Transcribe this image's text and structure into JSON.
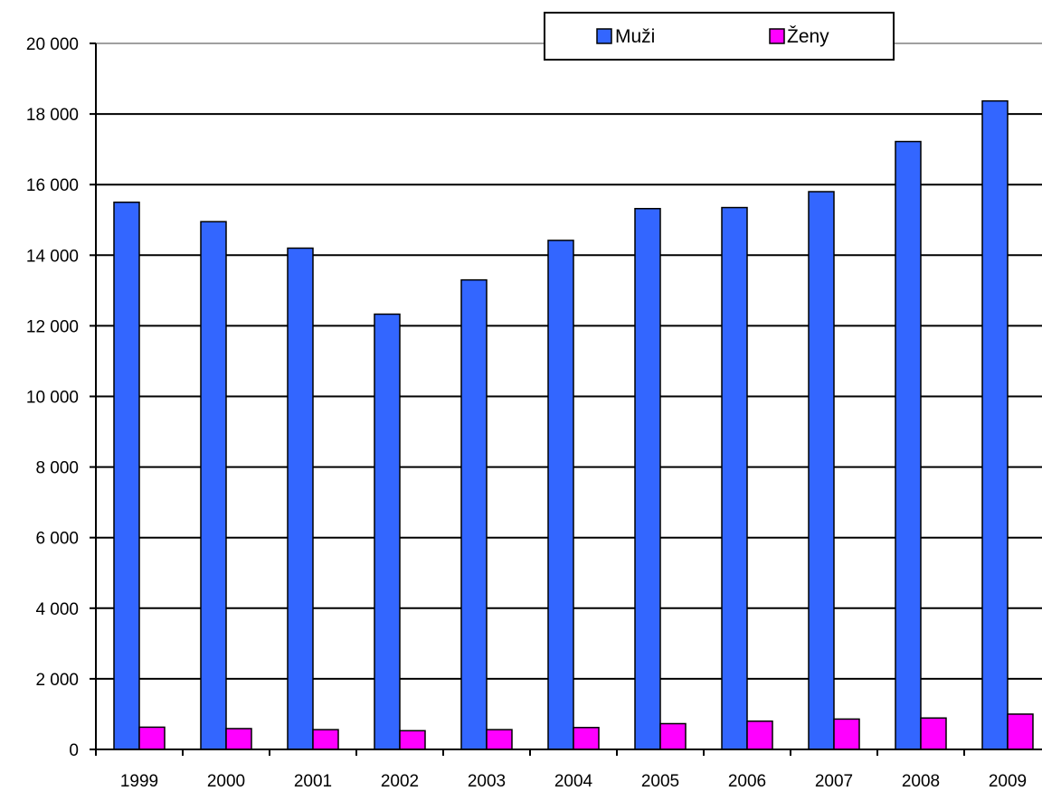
{
  "chart_data": {
    "type": "bar",
    "categories": [
      "1999",
      "2000",
      "2001",
      "2002",
      "2003",
      "2004",
      "2005",
      "2006",
      "2007",
      "2008",
      "2009"
    ],
    "series": [
      {
        "name": "Muži",
        "color": "#3366ff",
        "values": [
          15500,
          14950,
          14200,
          12330,
          13300,
          14420,
          15320,
          15350,
          15800,
          17220,
          18370
        ]
      },
      {
        "name": "Ženy",
        "color": "#ff00ff",
        "values": [
          630,
          590,
          560,
          530,
          560,
          620,
          730,
          800,
          860,
          890,
          1000
        ]
      }
    ],
    "y_ticks": [
      "0",
      "2 000",
      "4 000",
      "6 000",
      "8 000",
      "10 000",
      "12 000",
      "14 000",
      "16 000",
      "18 000",
      "20 000"
    ],
    "ylim": [
      0,
      20000
    ],
    "title": "",
    "xlabel": "",
    "ylabel": "",
    "grid": true,
    "legend_position": "top-right"
  }
}
